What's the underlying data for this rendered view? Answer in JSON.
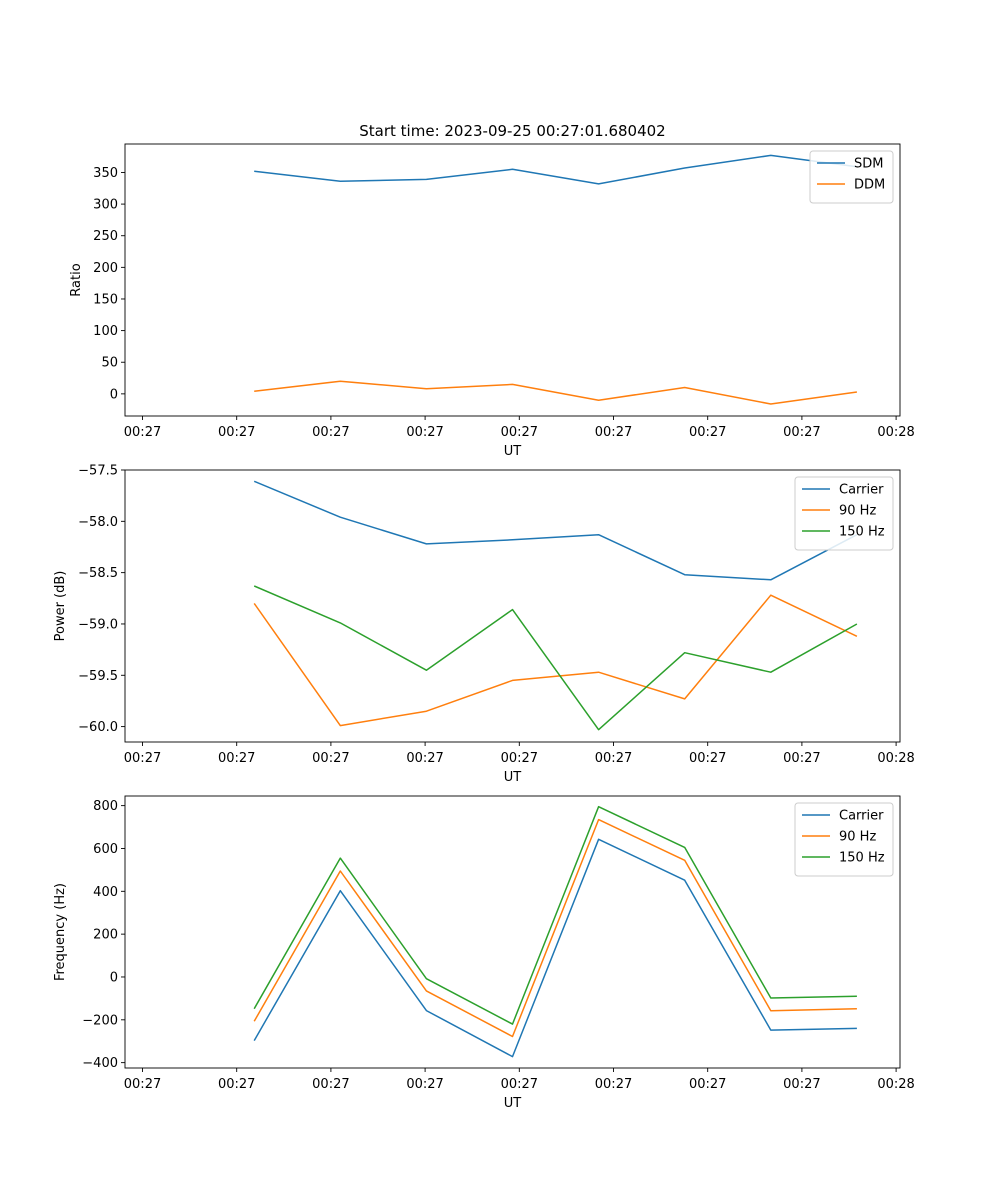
{
  "figure": {
    "title": "Start time: 2023-09-25 00:27:01.680402"
  },
  "chart_data": [
    {
      "type": "line",
      "title": "Start time: 2023-09-25 00:27:01.680402",
      "xlabel": "UT",
      "ylabel": "Ratio",
      "x_tick_labels": [
        "00:27",
        "00:27",
        "00:27",
        "00:27",
        "00:27",
        "00:27",
        "00:27"
      ],
      "x_last_tick_label": "00:28",
      "xlim": [
        -0.5,
        8.5
      ],
      "ylim": [
        -35,
        395
      ],
      "y_ticks": [
        0,
        50,
        100,
        150,
        200,
        250,
        300,
        350
      ],
      "x": [
        1,
        2,
        3,
        4,
        5,
        6,
        7,
        8
      ],
      "legend_position": "top-right",
      "series": [
        {
          "name": "SDM",
          "color": "#1f77b4",
          "values": [
            352,
            336,
            339,
            355,
            332,
            357,
            377,
            359
          ]
        },
        {
          "name": "DDM",
          "color": "#ff7f0e",
          "values": [
            4,
            20,
            8,
            15,
            -10,
            10,
            -16,
            3
          ]
        }
      ]
    },
    {
      "type": "line",
      "title": "",
      "xlabel": "UT",
      "ylabel": "Power (dB)",
      "x_tick_labels": [
        "00:27",
        "00:27",
        "00:27",
        "00:27",
        "00:27",
        "00:27",
        "00:27"
      ],
      "x_last_tick_label": "00:28",
      "xlim": [
        -0.5,
        8.5
      ],
      "ylim": [
        -60.15,
        -57.5
      ],
      "y_ticks": [
        -60.0,
        -59.5,
        -59.0,
        -58.5,
        -58.0,
        -57.5
      ],
      "y_tick_decimals": 1,
      "x": [
        1,
        2,
        3,
        4,
        5,
        6,
        7,
        8
      ],
      "legend_position": "top-right",
      "series": [
        {
          "name": "Carrier",
          "color": "#1f77b4",
          "values": [
            -57.61,
            -57.96,
            -58.22,
            -58.18,
            -58.13,
            -58.52,
            -58.57,
            -58.13
          ]
        },
        {
          "name": "90 Hz",
          "color": "#ff7f0e",
          "values": [
            -58.8,
            -59.99,
            -59.85,
            -59.55,
            -59.47,
            -59.73,
            -58.72,
            -59.12
          ]
        },
        {
          "name": "150 Hz",
          "color": "#2ca02c",
          "values": [
            -58.63,
            -58.99,
            -59.45,
            -58.86,
            -60.03,
            -59.28,
            -59.47,
            -59.0
          ]
        }
      ]
    },
    {
      "type": "line",
      "title": "",
      "xlabel": "UT",
      "ylabel": "Frequency (Hz)",
      "x_tick_labels": [
        "00:27",
        "00:27",
        "00:27",
        "00:27",
        "00:27",
        "00:27",
        "00:27"
      ],
      "x_last_tick_label": "00:28",
      "xlim": [
        -0.5,
        8.5
      ],
      "ylim": [
        -425,
        845
      ],
      "y_ticks": [
        -400,
        -200,
        0,
        200,
        400,
        600,
        800
      ],
      "x": [
        1,
        2,
        3,
        4,
        5,
        6,
        7,
        8
      ],
      "legend_position": "top-right",
      "series": [
        {
          "name": "Carrier",
          "color": "#1f77b4",
          "values": [
            -297,
            403,
            -157,
            -372,
            643,
            452,
            -248,
            -240
          ]
        },
        {
          "name": "90 Hz",
          "color": "#ff7f0e",
          "values": [
            -207,
            495,
            -65,
            -278,
            735,
            545,
            -158,
            -148
          ]
        },
        {
          "name": "150 Hz",
          "color": "#2ca02c",
          "values": [
            -148,
            555,
            -8,
            -220,
            795,
            605,
            -98,
            -90
          ]
        }
      ]
    }
  ]
}
